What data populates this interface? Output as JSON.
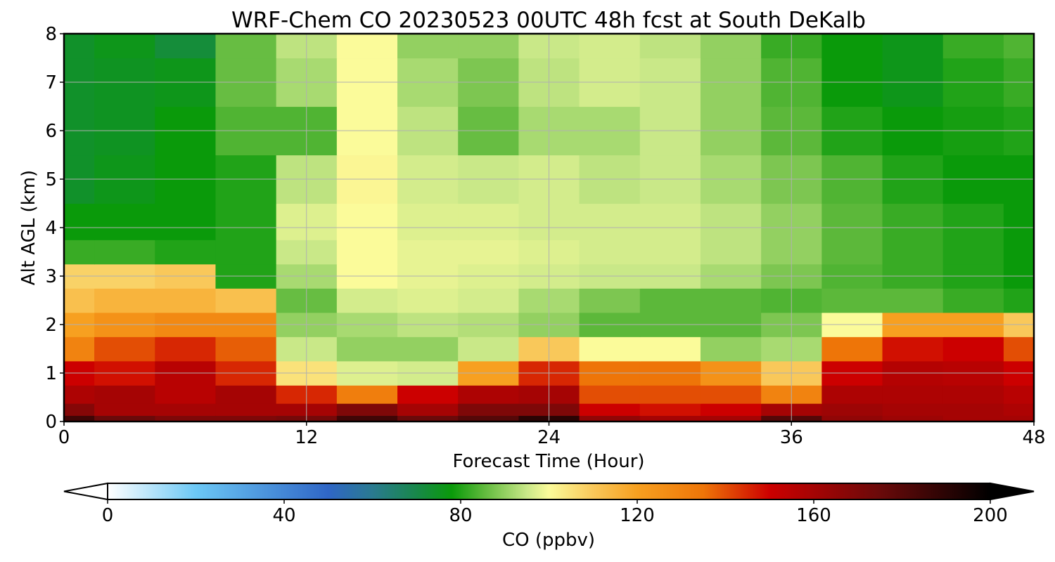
{
  "chart_data": {
    "type": "heatmap",
    "title": "WRF-Chem CO  20230523 00UTC 48h fcst at South DeKalb",
    "xlabel": "Forecast Time (Hour)",
    "ylabel": "Alt AGL (km)",
    "xlim": [
      0,
      48
    ],
    "ylim": [
      0,
      8
    ],
    "xticks": [
      0,
      12,
      24,
      36,
      48
    ],
    "yticks": [
      0,
      1,
      2,
      3,
      4,
      5,
      6,
      7,
      8
    ],
    "grid": true,
    "x": [
      0,
      3,
      6,
      9,
      12,
      15,
      18,
      21,
      24,
      27,
      30,
      33,
      36,
      39,
      42,
      45,
      48
    ],
    "y": [
      0,
      0.25,
      0.5,
      1,
      1.5,
      2,
      2.5,
      3,
      3.5,
      4,
      5,
      6,
      7,
      8
    ],
    "z": [
      [
        185,
        175,
        170,
        170,
        172,
        185,
        175,
        180,
        190,
        165,
        160,
        160,
        180,
        165,
        162,
        160,
        160
      ],
      [
        168,
        160,
        160,
        160,
        160,
        170,
        160,
        170,
        170,
        150,
        148,
        150,
        160,
        162,
        160,
        160,
        158
      ],
      [
        158,
        160,
        155,
        160,
        145,
        132,
        150,
        158,
        160,
        140,
        140,
        140,
        130,
        158,
        158,
        158,
        155
      ],
      [
        150,
        148,
        155,
        145,
        105,
        97,
        96,
        120,
        145,
        135,
        135,
        125,
        110,
        150,
        156,
        155,
        150
      ],
      [
        130,
        140,
        145,
        138,
        95,
        90,
        90,
        95,
        110,
        100,
        100,
        90,
        92,
        135,
        148,
        150,
        140
      ],
      [
        120,
        125,
        128,
        128,
        90,
        92,
        94,
        93,
        90,
        85,
        85,
        85,
        88,
        100,
        120,
        120,
        110
      ],
      [
        112,
        115,
        115,
        112,
        86,
        96,
        97,
        96,
        92,
        88,
        85,
        85,
        84,
        85,
        85,
        82,
        80
      ],
      [
        108,
        108,
        110,
        80,
        92,
        100,
        98,
        97,
        96,
        95,
        95,
        92,
        88,
        84,
        82,
        80,
        78
      ],
      [
        82,
        82,
        80,
        80,
        95,
        100,
        98,
        98,
        97,
        96,
        96,
        94,
        90,
        85,
        82,
        80,
        78
      ],
      [
        78,
        78,
        78,
        80,
        97,
        100,
        97,
        97,
        96,
        96,
        96,
        94,
        90,
        85,
        82,
        80,
        78
      ],
      [
        74,
        76,
        78,
        80,
        94,
        101,
        96,
        95,
        96,
        94,
        95,
        92,
        88,
        84,
        80,
        78,
        78
      ],
      [
        74,
        75,
        78,
        84,
        84,
        100,
        94,
        86,
        92,
        92,
        95,
        90,
        85,
        80,
        78,
        79,
        80
      ],
      [
        74,
        75,
        76,
        86,
        92,
        100,
        92,
        88,
        94,
        96,
        95,
        90,
        84,
        78,
        76,
        80,
        82
      ],
      [
        74,
        76,
        72,
        86,
        94,
        100,
        90,
        90,
        95,
        96,
        94,
        90,
        82,
        78,
        76,
        82,
        84
      ]
    ]
  },
  "colorbar": {
    "label": "CO  (ppbv)",
    "ticks": [
      0,
      40,
      80,
      120,
      160,
      200
    ],
    "min": 0,
    "max": 200,
    "extend": "both",
    "stops": [
      {
        "v": 0,
        "c": "#ffffff"
      },
      {
        "v": 20,
        "c": "#6cc8f5"
      },
      {
        "v": 50,
        "c": "#2f66c6"
      },
      {
        "v": 60,
        "c": "#2a7a90"
      },
      {
        "v": 70,
        "c": "#18884a"
      },
      {
        "v": 78,
        "c": "#0a9a0a"
      },
      {
        "v": 85,
        "c": "#5cb83a"
      },
      {
        "v": 95,
        "c": "#c9e888"
      },
      {
        "v": 100,
        "c": "#fbfb9a"
      },
      {
        "v": 110,
        "c": "#f9c85a"
      },
      {
        "v": 120,
        "c": "#f7a020"
      },
      {
        "v": 135,
        "c": "#ee7508"
      },
      {
        "v": 150,
        "c": "#cc0000"
      },
      {
        "v": 175,
        "c": "#6a0a0a"
      },
      {
        "v": 200,
        "c": "#000000"
      }
    ]
  }
}
